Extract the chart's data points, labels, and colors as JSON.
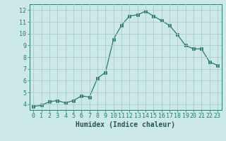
{
  "x": [
    0,
    1,
    2,
    3,
    4,
    5,
    6,
    7,
    8,
    9,
    10,
    11,
    12,
    13,
    14,
    15,
    16,
    17,
    18,
    19,
    20,
    21,
    22,
    23
  ],
  "y": [
    3.8,
    3.9,
    4.2,
    4.3,
    4.1,
    4.3,
    4.7,
    4.6,
    6.2,
    6.7,
    9.5,
    10.7,
    11.5,
    11.6,
    11.9,
    11.5,
    11.1,
    10.7,
    9.9,
    9.0,
    8.7,
    8.7,
    7.6,
    7.3
  ],
  "line_color": "#2a7a6a",
  "marker": "s",
  "marker_size": 2.5,
  "bg_color": "#cce8e8",
  "grid_color": "#aacccc",
  "xlabel": "Humidex (Indice chaleur)",
  "xlim": [
    -0.5,
    23.5
  ],
  "ylim": [
    3.5,
    12.5
  ],
  "yticks": [
    4,
    5,
    6,
    7,
    8,
    9,
    10,
    11,
    12
  ],
  "xticks": [
    0,
    1,
    2,
    3,
    4,
    5,
    6,
    7,
    8,
    9,
    10,
    11,
    12,
    13,
    14,
    15,
    16,
    17,
    18,
    19,
    20,
    21,
    22,
    23
  ],
  "tick_color": "#2a7a6a",
  "label_color": "#2a5555",
  "font_size_label": 7,
  "font_size_tick": 6
}
